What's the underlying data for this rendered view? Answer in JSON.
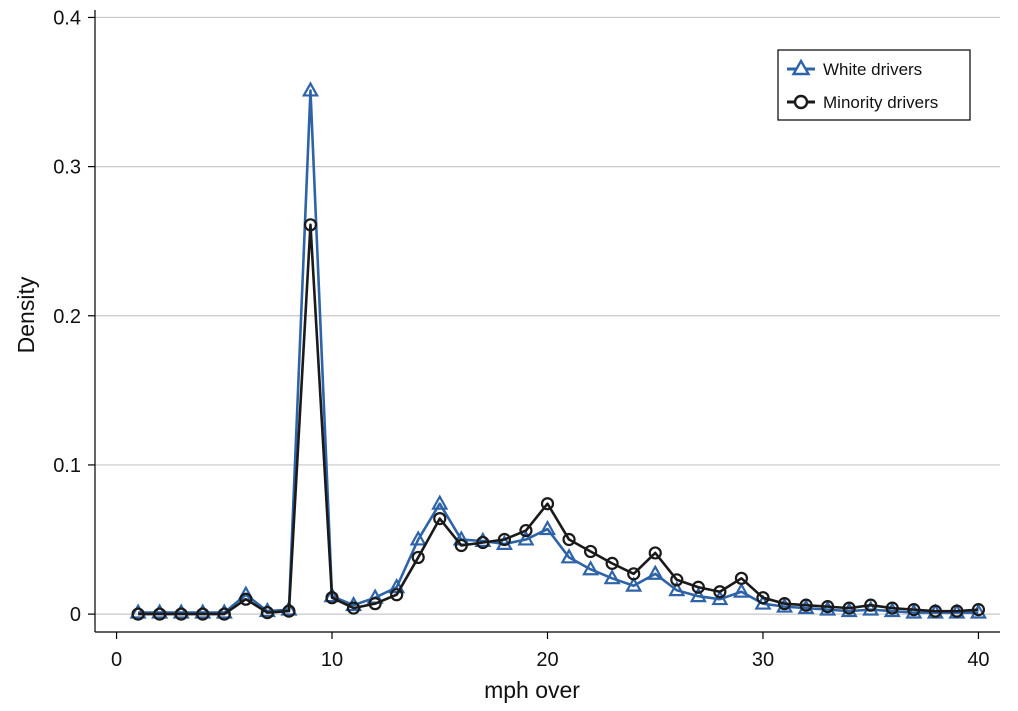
{
  "chart_data": {
    "type": "line",
    "xlabel": "mph over",
    "ylabel": "Density",
    "xlim": [
      -1,
      41
    ],
    "ylim": [
      -0.012,
      0.405
    ],
    "xticks": [
      0,
      10,
      20,
      30,
      40
    ],
    "yticks": [
      0,
      0.1,
      0.2,
      0.3,
      0.4
    ],
    "ytick_labels": [
      "0",
      "0.1",
      "0.2",
      "0.3",
      "0.4"
    ],
    "grid": "horizontal",
    "legend_position": "top-right",
    "x": [
      1,
      2,
      3,
      4,
      5,
      6,
      7,
      8,
      9,
      10,
      11,
      12,
      13,
      14,
      15,
      16,
      17,
      18,
      19,
      20,
      21,
      22,
      23,
      24,
      25,
      26,
      27,
      28,
      29,
      30,
      31,
      32,
      33,
      34,
      35,
      36,
      37,
      38,
      39,
      40
    ],
    "series": [
      {
        "name": "White drivers",
        "marker": "triangle",
        "color": "#2e63a8",
        "values": [
          0.001,
          0.001,
          0.001,
          0.001,
          0.001,
          0.013,
          0.002,
          0.003,
          0.351,
          0.012,
          0.006,
          0.011,
          0.018,
          0.05,
          0.074,
          0.05,
          0.049,
          0.047,
          0.05,
          0.057,
          0.038,
          0.03,
          0.024,
          0.019,
          0.027,
          0.016,
          0.012,
          0.01,
          0.015,
          0.007,
          0.005,
          0.004,
          0.003,
          0.002,
          0.003,
          0.002,
          0.001,
          0.001,
          0.001,
          0.001
        ]
      },
      {
        "name": "Minority drivers",
        "marker": "circle",
        "color": "#1a1a1a",
        "values": [
          0.0,
          0.0,
          0.0,
          0.0,
          0.0,
          0.01,
          0.001,
          0.002,
          0.261,
          0.011,
          0.004,
          0.007,
          0.013,
          0.038,
          0.064,
          0.046,
          0.048,
          0.05,
          0.056,
          0.074,
          0.05,
          0.042,
          0.034,
          0.027,
          0.041,
          0.023,
          0.018,
          0.015,
          0.024,
          0.011,
          0.007,
          0.006,
          0.005,
          0.004,
          0.006,
          0.004,
          0.003,
          0.002,
          0.002,
          0.003
        ]
      }
    ]
  }
}
